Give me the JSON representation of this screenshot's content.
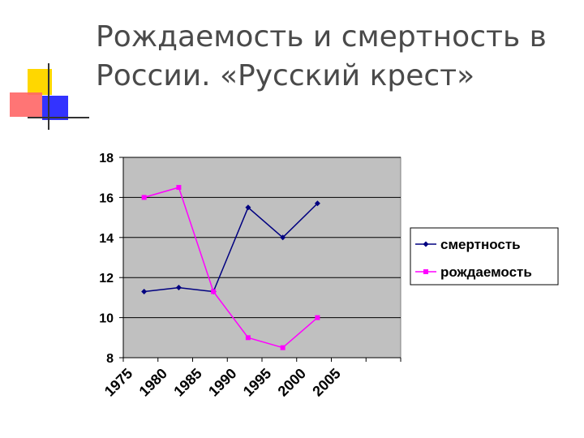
{
  "slide": {
    "title_line1": "Рождаемость и  смертность в",
    "title_line2": "России. «Русский крест»"
  },
  "colors": {
    "accent_yellow": "#FFD700",
    "accent_red": "#FF6666",
    "accent_blue": "#3333FF",
    "plot_bg": "#C0C0C0"
  },
  "chart_data": {
    "type": "line",
    "title": "",
    "xlabel": "",
    "ylabel": "",
    "x_ticks": [
      "1975",
      "1980",
      "1985",
      "1990",
      "1995",
      "2000",
      "2005"
    ],
    "ylim": [
      8,
      18
    ],
    "y_ticks": [
      "8",
      "10",
      "12",
      "14",
      "16",
      "18"
    ],
    "grid": "horizontal",
    "legend_position": "right",
    "series": [
      {
        "name": "смертность",
        "color": "#000080",
        "marker": "diamond",
        "x": [
          1978,
          1983,
          1988,
          1993,
          1998,
          2003
        ],
        "values": [
          11.3,
          11.5,
          11.3,
          15.5,
          14.0,
          15.7
        ]
      },
      {
        "name": "рождаемость",
        "color": "#FF00FF",
        "marker": "square",
        "x": [
          1978,
          1983,
          1988,
          1993,
          1998,
          2003
        ],
        "values": [
          16.0,
          16.5,
          11.3,
          9.0,
          8.5,
          10.0
        ]
      }
    ]
  }
}
